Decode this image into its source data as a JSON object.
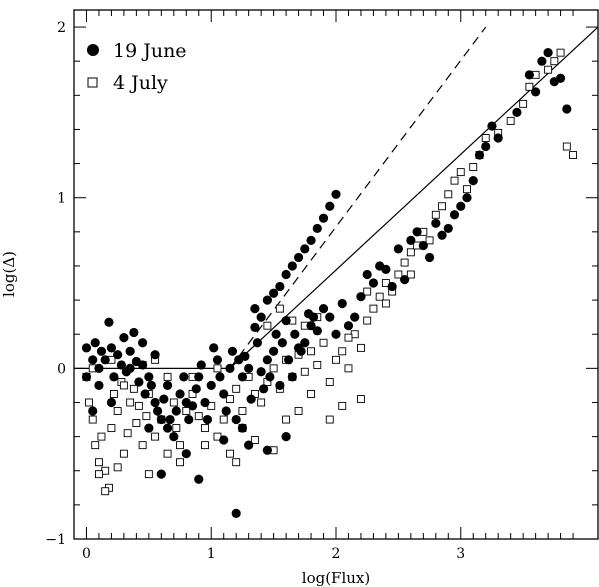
{
  "chart_data": {
    "type": "scatter",
    "xlabel": "log(Flux)",
    "ylabel": "log(Δ)",
    "xlim": [
      -0.1,
      4.1
    ],
    "ylim": [
      -1.0,
      2.1
    ],
    "x_ticks": [
      0,
      1,
      2,
      3
    ],
    "y_ticks": [
      -1,
      0,
      1,
      2
    ],
    "x_tick_labels": [
      "0",
      "1",
      "2",
      "3"
    ],
    "y_tick_labels": [
      "−1",
      "0",
      "1",
      "2"
    ],
    "legend_position": "top-left",
    "series": [
      {
        "name": "19 June",
        "marker": "filled-circle",
        "color": "#000000",
        "points": [
          [
            0.0,
            0.12
          ],
          [
            0.05,
            0.05
          ],
          [
            0.07,
            0.15
          ],
          [
            0.1,
            0.0
          ],
          [
            0.12,
            0.1
          ],
          [
            0.15,
            0.05
          ],
          [
            0.18,
            0.27
          ],
          [
            0.2,
            0.12
          ],
          [
            0.22,
            -0.05
          ],
          [
            0.25,
            0.08
          ],
          [
            0.28,
            0.02
          ],
          [
            0.3,
            0.18
          ],
          [
            0.32,
            -0.02
          ],
          [
            0.35,
            0.1
          ],
          [
            0.38,
            0.21
          ],
          [
            0.4,
            0.04
          ],
          [
            0.42,
            -0.08
          ],
          [
            0.45,
            0.02
          ],
          [
            0.47,
            -0.15
          ],
          [
            0.5,
            -0.05
          ],
          [
            0.5,
            -0.35
          ],
          [
            0.52,
            -0.1
          ],
          [
            0.55,
            -0.2
          ],
          [
            0.57,
            -0.25
          ],
          [
            0.6,
            -0.3
          ],
          [
            0.62,
            -0.18
          ],
          [
            0.65,
            -0.1
          ],
          [
            0.67,
            -0.3
          ],
          [
            0.7,
            -0.4
          ],
          [
            0.72,
            -0.25
          ],
          [
            0.75,
            -0.15
          ],
          [
            0.78,
            -0.05
          ],
          [
            0.8,
            -0.2
          ],
          [
            0.82,
            -0.3
          ],
          [
            0.85,
            -0.22
          ],
          [
            0.88,
            -0.12
          ],
          [
            0.9,
            -0.05
          ],
          [
            0.92,
            0.02
          ],
          [
            0.95,
            -0.2
          ],
          [
            0.97,
            -0.3
          ],
          [
            1.0,
            -0.1
          ],
          [
            1.02,
            0.12
          ],
          [
            1.05,
            0.05
          ],
          [
            1.07,
            -0.05
          ],
          [
            1.1,
            -0.15
          ],
          [
            1.12,
            -0.25
          ],
          [
            1.15,
            0.0
          ],
          [
            1.17,
            0.1
          ],
          [
            1.2,
            -0.3
          ],
          [
            1.22,
            0.05
          ],
          [
            1.25,
            -0.05
          ],
          [
            1.27,
            0.07
          ],
          [
            1.3,
            0.0
          ],
          [
            1.32,
            -0.18
          ],
          [
            1.35,
            0.24
          ],
          [
            1.37,
            0.15
          ],
          [
            1.4,
            -0.02
          ],
          [
            1.42,
            -0.12
          ],
          [
            1.45,
            0.05
          ],
          [
            1.47,
            -0.05
          ],
          [
            1.5,
            0.1
          ],
          [
            1.52,
            0.2
          ],
          [
            1.55,
            -0.1
          ],
          [
            1.57,
            0.15
          ],
          [
            1.6,
            0.28
          ],
          [
            1.62,
            0.05
          ],
          [
            1.65,
            -0.05
          ],
          [
            1.67,
            0.2
          ],
          [
            1.7,
            0.12
          ],
          [
            1.72,
            0.1
          ],
          [
            1.75,
            0.15
          ],
          [
            1.78,
            0.32
          ],
          [
            1.8,
            0.25
          ],
          [
            1.82,
            0.3
          ],
          [
            1.85,
            0.22
          ],
          [
            1.9,
            0.35
          ],
          [
            1.95,
            0.3
          ],
          [
            2.0,
            0.2
          ],
          [
            2.05,
            0.38
          ],
          [
            2.1,
            0.25
          ],
          [
            2.15,
            0.3
          ],
          [
            2.2,
            0.42
          ],
          [
            2.25,
            0.55
          ],
          [
            2.3,
            0.5
          ],
          [
            2.35,
            0.6
          ],
          [
            2.4,
            0.58
          ],
          [
            2.45,
            0.48
          ],
          [
            2.5,
            0.7
          ],
          [
            2.55,
            0.52
          ],
          [
            2.6,
            0.75
          ],
          [
            2.65,
            0.8
          ],
          [
            2.7,
            0.72
          ],
          [
            2.75,
            0.65
          ],
          [
            2.8,
            0.85
          ],
          [
            2.85,
            0.78
          ],
          [
            2.9,
            0.82
          ],
          [
            2.95,
            0.9
          ],
          [
            3.0,
            0.95
          ],
          [
            3.05,
            1.0
          ],
          [
            3.1,
            1.1
          ],
          [
            3.15,
            1.25
          ],
          [
            3.2,
            1.3
          ],
          [
            3.25,
            1.42
          ],
          [
            3.3,
            1.35
          ],
          [
            3.45,
            1.5
          ],
          [
            3.55,
            1.72
          ],
          [
            3.6,
            1.62
          ],
          [
            3.65,
            1.8
          ],
          [
            3.7,
            1.85
          ],
          [
            3.75,
            1.68
          ],
          [
            3.8,
            1.7
          ],
          [
            3.85,
            1.52
          ],
          [
            1.55,
            0.48
          ],
          [
            1.6,
            0.55
          ],
          [
            1.65,
            0.6
          ],
          [
            1.7,
            0.65
          ],
          [
            1.75,
            0.7
          ],
          [
            1.8,
            0.75
          ],
          [
            1.85,
            0.82
          ],
          [
            1.9,
            0.88
          ],
          [
            1.95,
            0.95
          ],
          [
            2.0,
            1.02
          ],
          [
            1.45,
            0.4
          ],
          [
            1.5,
            0.44
          ],
          [
            1.4,
            0.3
          ],
          [
            1.35,
            0.35
          ],
          [
            0.6,
            -0.62
          ],
          [
            0.9,
            -0.65
          ],
          [
            1.2,
            -0.85
          ],
          [
            1.3,
            -0.45
          ],
          [
            1.6,
            -0.4
          ],
          [
            1.45,
            -0.48
          ],
          [
            1.25,
            -0.35
          ],
          [
            1.1,
            -0.42
          ],
          [
            0.8,
            -0.5
          ],
          [
            0.65,
            -0.35
          ],
          [
            0.35,
            0.0
          ],
          [
            0.45,
            0.15
          ],
          [
            0.55,
            0.08
          ],
          [
            0.2,
            -0.2
          ],
          [
            0.1,
            -0.1
          ],
          [
            0.05,
            -0.25
          ],
          [
            0.0,
            -0.05
          ]
        ]
      },
      {
        "name": "4 July",
        "marker": "open-square",
        "color": "#000000",
        "points": [
          [
            0.0,
            -0.05
          ],
          [
            0.02,
            -0.2
          ],
          [
            0.05,
            -0.3
          ],
          [
            0.07,
            -0.45
          ],
          [
            0.1,
            -0.55
          ],
          [
            0.12,
            -0.4
          ],
          [
            0.15,
            -0.6
          ],
          [
            0.18,
            -0.7
          ],
          [
            0.2,
            -0.35
          ],
          [
            0.22,
            -0.15
          ],
          [
            0.25,
            -0.25
          ],
          [
            0.28,
            -0.08
          ],
          [
            0.3,
            -0.5
          ],
          [
            0.33,
            -0.38
          ],
          [
            0.35,
            -0.2
          ],
          [
            0.38,
            -0.12
          ],
          [
            0.4,
            -0.32
          ],
          [
            0.42,
            -0.22
          ],
          [
            0.45,
            -0.45
          ],
          [
            0.48,
            -0.28
          ],
          [
            0.5,
            -0.15
          ],
          [
            0.55,
            -0.4
          ],
          [
            0.6,
            -0.3
          ],
          [
            0.65,
            -0.5
          ],
          [
            0.7,
            -0.2
          ],
          [
            0.72,
            -0.35
          ],
          [
            0.75,
            -0.45
          ],
          [
            0.8,
            -0.25
          ],
          [
            0.85,
            -0.15
          ],
          [
            0.9,
            -0.28
          ],
          [
            0.95,
            -0.35
          ],
          [
            1.0,
            -0.22
          ],
          [
            1.05,
            -0.4
          ],
          [
            1.1,
            -0.3
          ],
          [
            1.15,
            -0.18
          ],
          [
            1.2,
            -0.12
          ],
          [
            1.25,
            -0.25
          ],
          [
            1.3,
            -0.05
          ],
          [
            1.35,
            -0.15
          ],
          [
            1.4,
            -0.2
          ],
          [
            1.45,
            -0.08
          ],
          [
            1.5,
            0.0
          ],
          [
            1.55,
            -0.12
          ],
          [
            1.6,
            0.05
          ],
          [
            1.65,
            -0.05
          ],
          [
            1.7,
            0.08
          ],
          [
            1.75,
            -0.02
          ],
          [
            1.8,
            0.1
          ],
          [
            1.85,
            0.02
          ],
          [
            1.9,
            0.15
          ],
          [
            1.95,
            -0.08
          ],
          [
            2.0,
            0.05
          ],
          [
            2.05,
            0.1
          ],
          [
            2.1,
            0.0
          ],
          [
            2.15,
            0.2
          ],
          [
            2.2,
            0.12
          ],
          [
            2.25,
            0.28
          ],
          [
            2.3,
            0.35
          ],
          [
            2.35,
            0.42
          ],
          [
            2.4,
            0.5
          ],
          [
            2.45,
            0.45
          ],
          [
            2.5,
            0.55
          ],
          [
            2.55,
            0.62
          ],
          [
            2.6,
            0.68
          ],
          [
            2.65,
            0.72
          ],
          [
            2.7,
            0.8
          ],
          [
            2.75,
            0.75
          ],
          [
            2.8,
            0.9
          ],
          [
            2.85,
            0.95
          ],
          [
            2.9,
            1.02
          ],
          [
            2.95,
            1.1
          ],
          [
            3.0,
            1.15
          ],
          [
            3.05,
            1.05
          ],
          [
            3.1,
            1.18
          ],
          [
            3.15,
            1.25
          ],
          [
            3.2,
            1.35
          ],
          [
            3.3,
            1.38
          ],
          [
            3.4,
            1.45
          ],
          [
            3.5,
            1.55
          ],
          [
            3.55,
            1.65
          ],
          [
            3.6,
            1.72
          ],
          [
            3.7,
            1.75
          ],
          [
            3.75,
            1.8
          ],
          [
            3.8,
            1.85
          ],
          [
            3.85,
            1.3
          ],
          [
            3.9,
            1.25
          ],
          [
            0.1,
            -0.62
          ],
          [
            0.15,
            -0.72
          ],
          [
            0.25,
            -0.58
          ],
          [
            0.5,
            -0.62
          ],
          [
            1.2,
            -0.55
          ],
          [
            1.5,
            -0.48
          ],
          [
            0.05,
            0.0
          ],
          [
            0.2,
            0.05
          ],
          [
            0.55,
            0.05
          ],
          [
            0.65,
            -0.05
          ],
          [
            0.85,
            -0.05
          ],
          [
            1.05,
            0.0
          ],
          [
            1.25,
            -0.35
          ],
          [
            1.35,
            -0.42
          ],
          [
            1.6,
            -0.3
          ],
          [
            1.7,
            -0.25
          ],
          [
            1.8,
            -0.15
          ],
          [
            1.95,
            -0.3
          ],
          [
            2.05,
            -0.22
          ],
          [
            2.2,
            -0.18
          ],
          [
            1.85,
            0.3
          ],
          [
            1.75,
            0.25
          ],
          [
            1.65,
            0.28
          ],
          [
            1.55,
            0.35
          ],
          [
            1.45,
            0.25
          ],
          [
            0.45,
            0.02
          ],
          [
            0.3,
            -0.1
          ],
          [
            0.95,
            -0.45
          ],
          [
            1.15,
            -0.5
          ],
          [
            0.75,
            -0.55
          ],
          [
            2.1,
            0.18
          ],
          [
            2.25,
            0.45
          ],
          [
            2.4,
            0.38
          ],
          [
            2.6,
            0.55
          ]
        ]
      }
    ],
    "lines": [
      {
        "style": "solid",
        "x": [
          -0.1,
          1.15
        ],
        "y": [
          0.0,
          0.0
        ]
      },
      {
        "style": "solid",
        "x": [
          1.15,
          4.1
        ],
        "y": [
          0.0,
          2.0
        ]
      },
      {
        "style": "dashed",
        "x": [
          1.15,
          3.2
        ],
        "y": [
          0.0,
          2.0
        ]
      }
    ]
  }
}
